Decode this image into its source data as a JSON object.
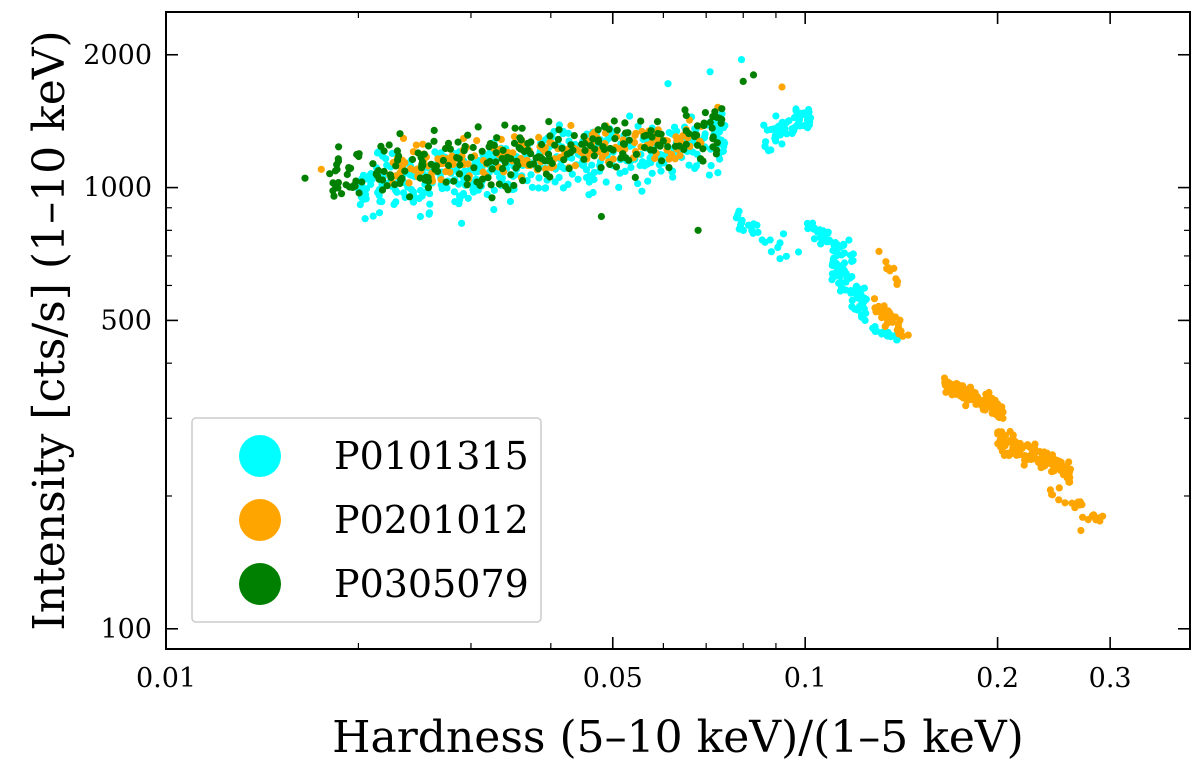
{
  "chart_data": {
    "type": "scatter",
    "title": "",
    "xlabel": "Hardness (5–10 keV)/(1–5 keV)",
    "ylabel": "Intensity [cts/s] (1–10 keV)",
    "xscale": "log",
    "yscale": "log",
    "xlim": [
      0.01,
      0.4
    ],
    "ylim": [
      90,
      2500
    ],
    "xticks": [
      0.01,
      0.05,
      0.1,
      0.2,
      0.3
    ],
    "xtick_labels": [
      "0.01",
      "0.05",
      "0.1",
      "0.2",
      "0.3"
    ],
    "yticks": [
      100,
      500,
      1000,
      2000
    ],
    "ytick_labels": [
      "100",
      "500",
      "1000",
      "2000"
    ],
    "grid": false,
    "legend_position": "bottom-left",
    "series": [
      {
        "name": "P0101315",
        "color": "#00FFFF",
        "clusters": [
          {
            "x_range": [
              0.02,
              0.075
            ],
            "y_range": [
              850,
              1650
            ],
            "count": 430
          },
          {
            "x_range": [
              0.086,
              0.102
            ],
            "y_range": [
              1200,
              1650
            ],
            "count": 60
          },
          {
            "x_range": [
              0.078,
              0.098
            ],
            "y_range": [
              660,
              900
            ],
            "count": 25
          },
          {
            "x_range": [
              0.1,
              0.12
            ],
            "y_range": [
              680,
              840
            ],
            "count": 40
          },
          {
            "x_range": [
              0.11,
              0.125
            ],
            "y_range": [
              500,
              720
            ],
            "count": 70
          },
          {
            "x_range": [
              0.126,
              0.14
            ],
            "y_range": [
              450,
              490
            ],
            "count": 20
          }
        ],
        "points": [
          {
            "x": 0.0795,
            "y": 1950
          },
          {
            "x": 0.071,
            "y": 1830
          },
          {
            "x": 0.061,
            "y": 1720
          },
          {
            "x": 0.025,
            "y": 860
          },
          {
            "x": 0.029,
            "y": 830
          }
        ]
      },
      {
        "name": "P0201012",
        "color": "#FFA500",
        "clusters": [
          {
            "x_range": [
              0.022,
              0.07
            ],
            "y_range": [
              1000,
              1550
            ],
            "count": 180
          },
          {
            "x_range": [
              0.128,
              0.145
            ],
            "y_range": [
              450,
              560
            ],
            "count": 30
          },
          {
            "x_range": [
              0.128,
              0.14
            ],
            "y_range": [
              600,
              740
            ],
            "count": 10
          },
          {
            "x_range": [
              0.165,
              0.205
            ],
            "y_range": [
              300,
              370
            ],
            "count": 120
          },
          {
            "x_range": [
              0.2,
              0.26
            ],
            "y_range": [
              215,
              280
            ],
            "count": 130
          },
          {
            "x_range": [
              0.24,
              0.29
            ],
            "y_range": [
              170,
              210
            ],
            "count": 20
          }
        ],
        "points": [
          {
            "x": 0.0175,
            "y": 1100
          },
          {
            "x": 0.092,
            "y": 1690
          },
          {
            "x": 0.073,
            "y": 1520
          },
          {
            "x": 0.292,
            "y": 180
          },
          {
            "x": 0.27,
            "y": 167
          }
        ]
      },
      {
        "name": "P0305079",
        "color": "#008000",
        "clusters": [
          {
            "x_range": [
              0.018,
              0.075
            ],
            "y_range": [
              900,
              1720
            ],
            "count": 260
          }
        ],
        "points": [
          {
            "x": 0.0165,
            "y": 1050
          },
          {
            "x": 0.083,
            "y": 1800
          },
          {
            "x": 0.08,
            "y": 1740
          },
          {
            "x": 0.068,
            "y": 800
          },
          {
            "x": 0.048,
            "y": 860
          }
        ]
      }
    ]
  }
}
